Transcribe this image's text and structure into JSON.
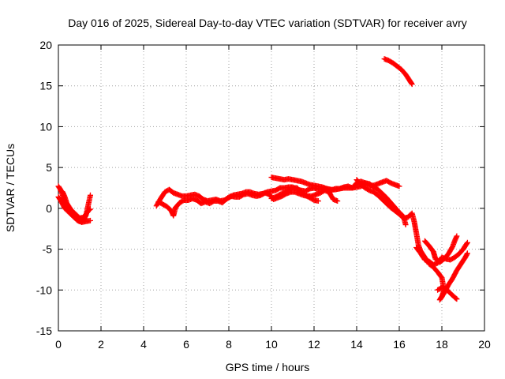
{
  "chart_data": {
    "type": "scatter",
    "title": "Day 016 of 2025, Sidereal Day-to-day VTEC variation (SDTVAR) for receiver avry",
    "xlabel": "GPS time / hours",
    "ylabel": "SDTVAR / TECUs",
    "xlim": [
      0,
      20
    ],
    "ylim": [
      -15,
      20
    ],
    "xticks": [
      0,
      2,
      4,
      6,
      8,
      10,
      12,
      14,
      16,
      18,
      20
    ],
    "yticks": [
      -15,
      -10,
      -5,
      0,
      5,
      10,
      15,
      20
    ],
    "grid": true,
    "marker": "+",
    "color": "#ff0000",
    "series": [
      {
        "name": "SDTVAR",
        "segments": [
          [
            [
              0.0,
              2.7
            ],
            [
              0.1,
              2.3
            ],
            [
              0.2,
              1.6
            ],
            [
              0.3,
              0.9
            ],
            [
              0.4,
              0.3
            ],
            [
              0.5,
              -0.2
            ],
            [
              0.6,
              -0.6
            ],
            [
              0.7,
              -0.9
            ],
            [
              0.8,
              -1.2
            ],
            [
              0.9,
              -1.4
            ],
            [
              1.0,
              -1.6
            ],
            [
              1.1,
              -1.6
            ],
            [
              1.2,
              -1.4
            ],
            [
              1.3,
              -0.8
            ],
            [
              1.4,
              0.4
            ],
            [
              1.5,
              1.6
            ]
          ],
          [
            [
              0.0,
              1.4
            ],
            [
              0.1,
              1.0
            ],
            [
              0.2,
              0.5
            ],
            [
              0.3,
              0.0
            ],
            [
              0.5,
              -0.5
            ],
            [
              0.7,
              -1.0
            ],
            [
              0.9,
              -1.5
            ],
            [
              1.1,
              -1.7
            ],
            [
              1.3,
              -1.6
            ],
            [
              1.5,
              -1.5
            ]
          ],
          [
            [
              0.1,
              2.2
            ],
            [
              0.2,
              2.0
            ],
            [
              0.3,
              1.4
            ],
            [
              0.4,
              0.6
            ],
            [
              0.6,
              -0.2
            ],
            [
              0.8,
              -0.7
            ],
            [
              1.0,
              -1.2
            ],
            [
              1.2,
              -1.1
            ],
            [
              1.4,
              -0.3
            ],
            [
              1.5,
              -0.1
            ]
          ],
          [
            [
              4.6,
              0.3
            ],
            [
              4.8,
              1.2
            ],
            [
              5.0,
              2.0
            ],
            [
              5.2,
              2.3
            ],
            [
              5.4,
              1.9
            ],
            [
              5.6,
              1.7
            ],
            [
              5.8,
              1.5
            ],
            [
              6.0,
              1.5
            ],
            [
              6.2,
              1.6
            ],
            [
              6.4,
              1.7
            ],
            [
              6.6,
              1.5
            ],
            [
              6.8,
              1.1
            ],
            [
              7.0,
              0.9
            ],
            [
              7.2,
              1.0
            ],
            [
              7.4,
              1.1
            ],
            [
              7.6,
              0.9
            ],
            [
              7.8,
              1.0
            ],
            [
              8.0,
              1.3
            ],
            [
              8.2,
              1.6
            ],
            [
              8.4,
              1.7
            ],
            [
              8.6,
              1.8
            ],
            [
              8.8,
              2.0
            ],
            [
              9.0,
              2.0
            ],
            [
              9.2,
              1.8
            ],
            [
              9.4,
              1.7
            ],
            [
              9.6,
              1.8
            ],
            [
              9.8,
              2.0
            ],
            [
              10.0,
              2.1
            ],
            [
              10.2,
              2.2
            ],
            [
              10.4,
              2.5
            ],
            [
              10.6,
              2.5
            ],
            [
              10.8,
              2.6
            ],
            [
              11.0,
              2.6
            ],
            [
              11.2,
              2.3
            ],
            [
              11.4,
              2.2
            ],
            [
              11.6,
              2.1
            ],
            [
              11.8,
              2.4
            ],
            [
              12.0,
              2.5
            ],
            [
              12.2,
              2.3
            ],
            [
              12.4,
              2.4
            ],
            [
              12.6,
              2.4
            ],
            [
              12.8,
              2.2
            ],
            [
              13.0,
              2.4
            ],
            [
              13.2,
              2.4
            ],
            [
              13.4,
              2.6
            ],
            [
              13.6,
              2.7
            ],
            [
              13.8,
              2.5
            ],
            [
              14.0,
              2.6
            ],
            [
              14.2,
              2.7
            ],
            [
              14.4,
              3.1
            ],
            [
              14.6,
              3.0
            ],
            [
              14.8,
              2.6
            ],
            [
              15.0,
              2.3
            ],
            [
              15.2,
              1.8
            ],
            [
              15.4,
              1.3
            ],
            [
              15.6,
              0.7
            ],
            [
              15.8,
              0.1
            ],
            [
              16.0,
              -0.5
            ],
            [
              16.2,
              -1.0
            ],
            [
              16.3,
              -2.0
            ]
          ],
          [
            [
              4.7,
              0.8
            ],
            [
              4.9,
              0.5
            ],
            [
              5.1,
              0.2
            ],
            [
              5.3,
              -0.3
            ],
            [
              5.4,
              -0.9
            ],
            [
              5.5,
              0.1
            ],
            [
              5.7,
              0.7
            ],
            [
              5.9,
              1.0
            ],
            [
              6.1,
              1.0
            ],
            [
              6.3,
              1.2
            ],
            [
              6.5,
              1.0
            ],
            [
              6.7,
              0.6
            ],
            [
              6.9,
              0.8
            ],
            [
              7.1,
              0.6
            ],
            [
              7.3,
              0.9
            ],
            [
              7.5,
              0.9
            ],
            [
              7.7,
              0.7
            ],
            [
              7.9,
              1.2
            ],
            [
              8.1,
              1.5
            ],
            [
              8.3,
              1.4
            ],
            [
              8.5,
              1.4
            ],
            [
              8.7,
              1.7
            ],
            [
              8.9,
              1.8
            ],
            [
              9.1,
              1.6
            ],
            [
              9.3,
              1.5
            ],
            [
              9.5,
              1.6
            ],
            [
              9.7,
              1.9
            ],
            [
              9.9,
              1.7
            ],
            [
              10.1,
              1.1
            ],
            [
              10.3,
              1.3
            ],
            [
              10.5,
              1.5
            ],
            [
              10.7,
              1.8
            ],
            [
              10.9,
              2.0
            ],
            [
              11.1,
              2.0
            ],
            [
              11.3,
              1.8
            ],
            [
              11.5,
              1.6
            ],
            [
              11.7,
              1.5
            ],
            [
              11.9,
              1.5
            ],
            [
              12.1,
              1.7
            ],
            [
              12.3,
              1.9
            ],
            [
              12.5,
              2.2
            ],
            [
              12.7,
              2.0
            ],
            [
              12.9,
              1.1
            ],
            [
              13.1,
              0.9
            ]
          ],
          [
            [
              10.0,
              3.8
            ],
            [
              10.2,
              3.7
            ],
            [
              10.4,
              3.6
            ],
            [
              10.6,
              3.5
            ],
            [
              10.8,
              3.6
            ],
            [
              11.0,
              3.5
            ],
            [
              11.2,
              3.4
            ],
            [
              11.4,
              3.3
            ],
            [
              11.6,
              3.1
            ],
            [
              11.8,
              2.9
            ],
            [
              12.0,
              2.8
            ],
            [
              12.2,
              2.7
            ],
            [
              12.4,
              2.6
            ],
            [
              12.6,
              2.4
            ],
            [
              12.8,
              2.3
            ],
            [
              13.0,
              2.3
            ],
            [
              13.2,
              2.4
            ],
            [
              13.4,
              2.5
            ],
            [
              13.6,
              2.5
            ],
            [
              13.8,
              2.5
            ],
            [
              14.0,
              3.1
            ],
            [
              14.2,
              3.3
            ],
            [
              14.4,
              3.1
            ],
            [
              14.6,
              2.8
            ],
            [
              14.8,
              2.8
            ],
            [
              15.0,
              3.0
            ],
            [
              15.2,
              3.2
            ],
            [
              15.4,
              3.4
            ],
            [
              15.6,
              3.1
            ],
            [
              15.8,
              2.9
            ],
            [
              16.0,
              2.7
            ]
          ],
          [
            [
              10.0,
              1.2
            ],
            [
              10.2,
              1.4
            ],
            [
              10.4,
              1.7
            ],
            [
              10.6,
              1.9
            ],
            [
              10.8,
              2.2
            ],
            [
              11.0,
              2.5
            ],
            [
              11.2,
              2.5
            ],
            [
              11.4,
              2.0
            ],
            [
              11.6,
              1.6
            ],
            [
              11.8,
              1.3
            ],
            [
              12.0,
              1.0
            ],
            [
              12.2,
              0.9
            ]
          ],
          [
            [
              14.0,
              3.5
            ],
            [
              14.2,
              2.9
            ],
            [
              14.4,
              2.5
            ],
            [
              14.6,
              2.2
            ],
            [
              14.8,
              2.0
            ],
            [
              15.0,
              1.6
            ],
            [
              15.2,
              1.1
            ],
            [
              15.4,
              0.6
            ],
            [
              15.6,
              0.1
            ],
            [
              15.8,
              -0.3
            ],
            [
              16.0,
              -0.7
            ],
            [
              16.2,
              -1.2
            ],
            [
              16.4,
              -1.1
            ],
            [
              16.6,
              -0.6
            ],
            [
              16.7,
              -1.6
            ],
            [
              16.8,
              -3.0
            ],
            [
              16.9,
              -4.5
            ],
            [
              17.0,
              -5.2
            ],
            [
              17.2,
              -6.0
            ],
            [
              17.4,
              -6.8
            ],
            [
              17.6,
              -7.2
            ],
            [
              17.8,
              -7.8
            ],
            [
              18.0,
              -8.5
            ],
            [
              18.1,
              -10.0
            ],
            [
              18.0,
              -10.8
            ],
            [
              17.9,
              -11.2
            ],
            [
              18.1,
              -10.4
            ],
            [
              18.3,
              -9.4
            ],
            [
              18.5,
              -8.6
            ],
            [
              18.7,
              -7.6
            ],
            [
              18.9,
              -6.8
            ],
            [
              19.1,
              -6.0
            ],
            [
              19.2,
              -5.5
            ]
          ],
          [
            [
              17.2,
              -4.0
            ],
            [
              17.4,
              -4.6
            ],
            [
              17.6,
              -5.3
            ],
            [
              17.7,
              -6.2
            ],
            [
              17.9,
              -6.6
            ],
            [
              18.1,
              -6.2
            ],
            [
              18.3,
              -5.6
            ],
            [
              18.5,
              -4.7
            ],
            [
              18.6,
              -4.0
            ],
            [
              18.7,
              -3.4
            ]
          ],
          [
            [
              16.8,
              -4.8
            ],
            [
              17.0,
              -5.5
            ],
            [
              17.2,
              -6.3
            ],
            [
              17.4,
              -6.5
            ],
            [
              17.6,
              -6.9
            ],
            [
              17.8,
              -6.7
            ],
            [
              18.0,
              -6.0
            ],
            [
              18.2,
              -6.2
            ],
            [
              18.4,
              -6.3
            ],
            [
              18.6,
              -6.0
            ],
            [
              18.8,
              -5.6
            ],
            [
              19.0,
              -5.0
            ],
            [
              19.2,
              -4.2
            ]
          ],
          [
            [
              17.8,
              -10.0
            ],
            [
              18.0,
              -9.7
            ],
            [
              18.2,
              -9.9
            ],
            [
              18.4,
              -10.4
            ],
            [
              18.6,
              -10.9
            ],
            [
              18.7,
              -11.1
            ]
          ],
          [
            [
              15.3,
              18.3
            ],
            [
              15.5,
              18.1
            ],
            [
              15.7,
              17.8
            ],
            [
              15.9,
              17.4
            ],
            [
              16.1,
              17.0
            ],
            [
              16.3,
              16.4
            ],
            [
              16.5,
              15.6
            ],
            [
              16.6,
              15.2
            ]
          ]
        ]
      }
    ]
  }
}
